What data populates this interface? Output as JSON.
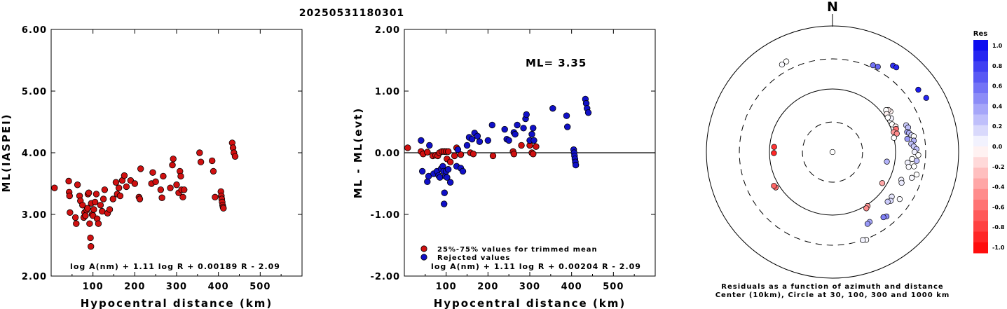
{
  "figure_title": "20250531180301",
  "chart_data": [
    {
      "type": "scatter",
      "xlabel": "Hypocentral distance (km)",
      "ylabel": "ML(IASPEI)",
      "xlim": [
        0,
        600
      ],
      "ylim": [
        2.0,
        6.0
      ],
      "xticks": [
        "100",
        "200",
        "300",
        "400",
        "500"
      ],
      "yticks": [
        "2.00",
        "3.00",
        "4.00",
        "5.00",
        "6.00"
      ],
      "formula": "log A(nm) + 1.11 log R + 0.00189 R - 2.09",
      "series": [
        {
          "color": "#d01010",
          "points": [
            [
              8,
              3.43
            ],
            [
              42,
              3.54
            ],
            [
              43,
              3.36
            ],
            [
              44,
              3.3
            ],
            [
              45,
              3.03
            ],
            [
              58,
              2.95
            ],
            [
              60,
              2.85
            ],
            [
              63,
              3.48
            ],
            [
              68,
              3.3
            ],
            [
              70,
              3.22
            ],
            [
              75,
              3.15
            ],
            [
              78,
              2.95
            ],
            [
              80,
              3.03
            ],
            [
              82,
              2.98
            ],
            [
              85,
              3.07
            ],
            [
              87,
              3.1
            ],
            [
              88,
              3.33
            ],
            [
              90,
              3.35
            ],
            [
              92,
              2.85
            ],
            [
              94,
              2.62
            ],
            [
              95,
              2.48
            ],
            [
              96,
              3.18
            ],
            [
              98,
              3.0
            ],
            [
              100,
              2.98
            ],
            [
              102,
              3.08
            ],
            [
              105,
              3.2
            ],
            [
              108,
              3.33
            ],
            [
              110,
              2.93
            ],
            [
              113,
              2.85
            ],
            [
              118,
              3.15
            ],
            [
              122,
              3.05
            ],
            [
              125,
              3.25
            ],
            [
              128,
              3.4
            ],
            [
              135,
              3.02
            ],
            [
              140,
              3.08
            ],
            [
              148,
              3.25
            ],
            [
              155,
              3.52
            ],
            [
              158,
              3.33
            ],
            [
              162,
              3.43
            ],
            [
              165,
              3.3
            ],
            [
              170,
              3.55
            ],
            [
              175,
              3.63
            ],
            [
              180,
              3.45
            ],
            [
              190,
              3.55
            ],
            [
              200,
              3.5
            ],
            [
              210,
              3.28
            ],
            [
              212,
              3.25
            ],
            [
              214,
              3.74
            ],
            [
              240,
              3.5
            ],
            [
              243,
              3.68
            ],
            [
              250,
              3.53
            ],
            [
              262,
              3.4
            ],
            [
              265,
              3.27
            ],
            [
              268,
              3.62
            ],
            [
              285,
              3.43
            ],
            [
              290,
              3.8
            ],
            [
              292,
              3.9
            ],
            [
              300,
              3.48
            ],
            [
              305,
              3.35
            ],
            [
              308,
              3.7
            ],
            [
              310,
              3.62
            ],
            [
              312,
              3.4
            ],
            [
              315,
              3.28
            ],
            [
              318,
              3.4
            ],
            [
              355,
              4.0
            ],
            [
              358,
              3.85
            ],
            [
              385,
              3.87
            ],
            [
              388,
              3.7
            ],
            [
              392,
              3.28
            ],
            [
              406,
              3.37
            ],
            [
              407,
              3.3
            ],
            [
              408,
              3.25
            ],
            [
              409,
              3.2
            ],
            [
              410,
              3.15
            ],
            [
              411,
              3.12
            ],
            [
              412,
              3.1
            ],
            [
              433,
              4.16
            ],
            [
              435,
              4.08
            ],
            [
              437,
              4.0
            ],
            [
              440,
              3.94
            ]
          ]
        }
      ]
    },
    {
      "type": "scatter",
      "xlabel": "Hypocentral distance (km)",
      "ylabel": "ML - ML(evt)",
      "xlim": [
        0,
        600
      ],
      "ylim": [
        -2.0,
        2.0
      ],
      "xticks": [
        "100",
        "200",
        "300",
        "400",
        "500"
      ],
      "yticks": [
        "-2.00",
        "-1.00",
        "0.00",
        "1.00",
        "2.00"
      ],
      "annotation": "ML= 3.35",
      "formula": "log A(nm) + 1.11 log R + 0.00204 R - 2.09",
      "legend": {
        "placement": "bottom-left",
        "entries": [
          {
            "label": "25%-75% values for trimmed mean",
            "color": "#d01010"
          },
          {
            "label": "Rejected values",
            "color": "#1010c8"
          }
        ]
      },
      "series": [
        {
          "color": "#d01010",
          "points": [
            [
              8,
              0.08
            ],
            [
              40,
              0.02
            ],
            [
              45,
              -0.02
            ],
            [
              55,
              0.01
            ],
            [
              68,
              -0.05
            ],
            [
              75,
              -0.04
            ],
            [
              80,
              -0.05
            ],
            [
              84,
              0.0
            ],
            [
              90,
              0.02
            ],
            [
              95,
              0.02
            ],
            [
              100,
              0.02
            ],
            [
              102,
              -0.1
            ],
            [
              105,
              0.02
            ],
            [
              110,
              -0.15
            ],
            [
              120,
              -0.05
            ],
            [
              125,
              0.08
            ],
            [
              135,
              -0.03
            ],
            [
              158,
              0.0
            ],
            [
              165,
              -0.02
            ],
            [
              212,
              -0.05
            ],
            [
              260,
              0.02
            ],
            [
              262,
              -0.02
            ],
            [
              280,
              0.12
            ],
            [
              300,
              0.12
            ],
            [
              305,
              0.0
            ],
            [
              308,
              -0.02
            ],
            [
              315,
              0.1
            ]
          ]
        },
        {
          "color": "#1010c8",
          "points": [
            [
              40,
              0.2
            ],
            [
              43,
              -0.3
            ],
            [
              55,
              -0.47
            ],
            [
              58,
              -0.38
            ],
            [
              60,
              0.12
            ],
            [
              70,
              -0.34
            ],
            [
              78,
              -0.3
            ],
            [
              82,
              -0.37
            ],
            [
              85,
              -0.4
            ],
            [
              88,
              -0.26
            ],
            [
              92,
              -0.22
            ],
            [
              94,
              -0.3
            ],
            [
              95,
              -0.83
            ],
            [
              96,
              -0.65
            ],
            [
              98,
              -0.38
            ],
            [
              100,
              -0.3
            ],
            [
              102,
              -0.4
            ],
            [
              105,
              -0.27
            ],
            [
              110,
              -0.48
            ],
            [
              125,
              -0.22
            ],
            [
              128,
              0.05
            ],
            [
              135,
              -0.25
            ],
            [
              140,
              -0.3
            ],
            [
              150,
              0.12
            ],
            [
              155,
              0.25
            ],
            [
              162,
              0.22
            ],
            [
              168,
              0.32
            ],
            [
              175,
              0.27
            ],
            [
              180,
              0.18
            ],
            [
              200,
              0.2
            ],
            [
              210,
              0.45
            ],
            [
              240,
              0.38
            ],
            [
              245,
              0.22
            ],
            [
              250,
              0.2
            ],
            [
              262,
              0.33
            ],
            [
              265,
              0.3
            ],
            [
              270,
              0.45
            ],
            [
              285,
              0.4
            ],
            [
              290,
              0.55
            ],
            [
              292,
              0.62
            ],
            [
              300,
              0.2
            ],
            [
              305,
              0.3
            ],
            [
              308,
              0.4
            ],
            [
              310,
              0.2
            ],
            [
              355,
              0.72
            ],
            [
              388,
              0.6
            ],
            [
              390,
              0.42
            ],
            [
              405,
              0.05
            ],
            [
              406,
              0.0
            ],
            [
              407,
              -0.05
            ],
            [
              408,
              -0.1
            ],
            [
              409,
              -0.15
            ],
            [
              410,
              -0.2
            ],
            [
              433,
              0.87
            ],
            [
              435,
              0.8
            ],
            [
              437,
              0.72
            ],
            [
              440,
              0.65
            ]
          ]
        }
      ]
    },
    {
      "type": "scatter",
      "subtype": "polar",
      "north_label": "N",
      "caption_lines": [
        "Residuals as a function of azimuth and distance",
        "Center (10km), Circle at 30, 100, 300 and 1000 km"
      ],
      "rings_km": [
        30,
        100,
        300,
        1000
      ],
      "colorbar": {
        "title": "Res",
        "ticks": [
          "1.0",
          "0.8",
          "0.6",
          "0.4",
          "0.2",
          "0.0",
          "-0.2",
          "-0.4",
          "-0.6",
          "-0.8",
          "-1.0"
        ],
        "max_color": "#0000ee",
        "mid_color": "#ffffff",
        "min_color": "#ff0000"
      },
      "stations": [
        {
          "az": 270,
          "dist": 3.4,
          "res": 0.0
        },
        {
          "az": 269,
          "dist": 85,
          "res": -0.85
        },
        {
          "az": 275,
          "dist": 85,
          "res": -0.8
        },
        {
          "az": 238,
          "dist": 115,
          "res": -0.55
        },
        {
          "az": 240,
          "dist": 118,
          "res": -0.6
        },
        {
          "az": 330,
          "dist": 400,
          "res": 0.02
        },
        {
          "az": 333,
          "dist": 410,
          "res": 0.0
        },
        {
          "az": 28,
          "dist": 340,
          "res": 0.6
        },
        {
          "az": 25,
          "dist": 330,
          "res": 0.55
        },
        {
          "az": 35,
          "dist": 470,
          "res": 0.8
        },
        {
          "az": 37,
          "dist": 480,
          "res": 0.85
        },
        {
          "az": 54,
          "dist": 480,
          "res": 0.9
        },
        {
          "az": 60,
          "dist": 520,
          "res": 0.85
        },
        {
          "az": 55,
          "dist": 132,
          "res": -0.05
        },
        {
          "az": 53,
          "dist": 128,
          "res": -0.08
        },
        {
          "az": 52,
          "dist": 120,
          "res": 0.0
        },
        {
          "az": 55,
          "dist": 112,
          "res": -0.05
        },
        {
          "az": 60,
          "dist": 118,
          "res": 0.05
        },
        {
          "az": 58,
          "dist": 108,
          "res": 0.0
        },
        {
          "az": 65,
          "dist": 110,
          "res": 0.0
        },
        {
          "az": 68,
          "dist": 120,
          "res": -0.05
        },
        {
          "az": 70,
          "dist": 118,
          "res": -0.55
        },
        {
          "az": 72,
          "dist": 105,
          "res": -0.4
        },
        {
          "az": 74,
          "dist": 115,
          "res": -0.45
        },
        {
          "az": 77,
          "dist": 100,
          "res": 0.0
        },
        {
          "az": 70,
          "dist": 175,
          "res": 0.2
        },
        {
          "az": 72,
          "dist": 182,
          "res": 0.25
        },
        {
          "az": 75,
          "dist": 168,
          "res": 0.35
        },
        {
          "az": 76,
          "dist": 178,
          "res": 0.3
        },
        {
          "az": 78,
          "dist": 190,
          "res": 0.15
        },
        {
          "az": 80,
          "dist": 160,
          "res": 0.4
        },
        {
          "az": 79,
          "dist": 205,
          "res": 0.0
        },
        {
          "az": 82,
          "dist": 200,
          "res": 0.3
        },
        {
          "az": 84,
          "dist": 180,
          "res": 0.25
        },
        {
          "az": 86,
          "dist": 195,
          "res": 0.2
        },
        {
          "az": 88,
          "dist": 215,
          "res": 0.25
        },
        {
          "az": 90,
          "dist": 200,
          "res": 0.05
        },
        {
          "az": 92,
          "dist": 230,
          "res": 0.0
        },
        {
          "az": 95,
          "dist": 185,
          "res": 0.0
        },
        {
          "az": 96,
          "dist": 220,
          "res": 0.25
        },
        {
          "az": 98,
          "dist": 160,
          "res": 0.05
        },
        {
          "az": 101,
          "dist": 170,
          "res": 0.02
        },
        {
          "az": 100,
          "dist": 205,
          "res": 0.0
        },
        {
          "az": 105,
          "dist": 240,
          "res": 0.0
        },
        {
          "az": 108,
          "dist": 210,
          "res": 0.02
        },
        {
          "az": 100,
          "dist": 75,
          "res": 0.3
        },
        {
          "az": 112,
          "dist": 150,
          "res": 0.05
        },
        {
          "az": 114,
          "dist": 158,
          "res": 0.08
        },
        {
          "az": 122,
          "dist": 85,
          "res": -0.35
        },
        {
          "az": 125,
          "dist": 200,
          "res": 0.02
        },
        {
          "az": 127,
          "dist": 150,
          "res": 0.1
        },
        {
          "az": 130,
          "dist": 160,
          "res": 0.15
        },
        {
          "az": 132,
          "dist": 150,
          "res": 0.2
        },
        {
          "az": 140,
          "dist": 215,
          "res": 0.45
        },
        {
          "az": 142,
          "dist": 205,
          "res": 0.5
        },
        {
          "az": 147,
          "dist": 105,
          "res": -0.4
        },
        {
          "az": 149,
          "dist": 110,
          "res": -0.45
        },
        {
          "az": 152,
          "dist": 180,
          "res": 0.35
        },
        {
          "az": 154,
          "dist": 185,
          "res": 0.4
        },
        {
          "az": 159,
          "dist": 310,
          "res": 0.02
        },
        {
          "az": 161,
          "dist": 300,
          "res": 0.05
        }
      ]
    }
  ]
}
